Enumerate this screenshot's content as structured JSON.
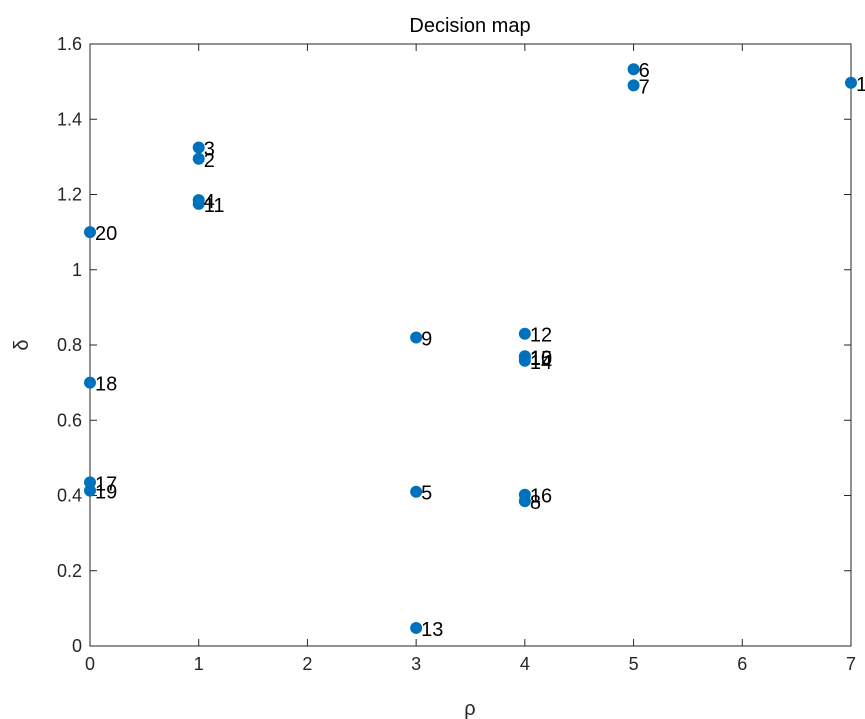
{
  "chart_data": {
    "type": "scatter",
    "title": "Decision map",
    "xlabel": "ρ",
    "ylabel": "δ",
    "xlim": [
      0,
      7
    ],
    "ylim": [
      0,
      1.6
    ],
    "xticks": [
      "0",
      "1",
      "2",
      "3",
      "4",
      "5",
      "6",
      "7"
    ],
    "yticks": [
      "0",
      "0.2",
      "0.4",
      "0.6",
      "0.8",
      "1",
      "1.2",
      "1.4",
      "1.6"
    ],
    "grid": false,
    "marker_color": "#0072BD",
    "points": [
      {
        "label": "1",
        "x": 7,
        "y": 1.497
      },
      {
        "label": "2",
        "x": 1,
        "y": 1.295
      },
      {
        "label": "3",
        "x": 1,
        "y": 1.325
      },
      {
        "label": "4",
        "x": 1,
        "y": 1.185
      },
      {
        "label": "5",
        "x": 3,
        "y": 0.41
      },
      {
        "label": "6",
        "x": 5,
        "y": 1.533
      },
      {
        "label": "7",
        "x": 5,
        "y": 1.49
      },
      {
        "label": "8",
        "x": 4,
        "y": 0.385
      },
      {
        "label": "9",
        "x": 3,
        "y": 0.82
      },
      {
        "label": "10",
        "x": 4,
        "y": 0.77
      },
      {
        "label": "11",
        "x": 1,
        "y": 1.175
      },
      {
        "label": "12",
        "x": 4,
        "y": 0.83
      },
      {
        "label": "13",
        "x": 3,
        "y": 0.048
      },
      {
        "label": "14",
        "x": 4,
        "y": 0.758
      },
      {
        "label": "15",
        "x": 4,
        "y": 0.768
      },
      {
        "label": "16",
        "x": 4,
        "y": 0.402
      },
      {
        "label": "17",
        "x": 0,
        "y": 0.435
      },
      {
        "label": "18",
        "x": 0,
        "y": 0.7
      },
      {
        "label": "19",
        "x": 0,
        "y": 0.413
      },
      {
        "label": "20",
        "x": 0,
        "y": 1.1
      }
    ]
  }
}
